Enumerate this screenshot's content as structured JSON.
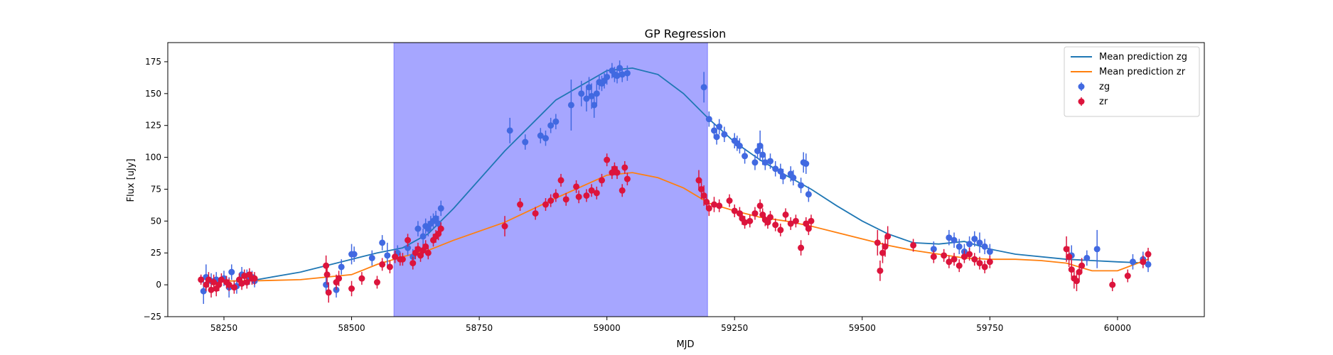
{
  "chart_data": {
    "type": "scatter",
    "title": "GP Regression",
    "xlabel": "MJD",
    "ylabel": "Flux [uJy]",
    "xlim": [
      58140,
      60170
    ],
    "ylim": [
      -25,
      190
    ],
    "xticks": [
      58250,
      58500,
      58750,
      59000,
      59250,
      59500,
      59750,
      60000
    ],
    "yticks": [
      -25,
      0,
      25,
      50,
      75,
      100,
      125,
      150,
      175
    ],
    "grid": false,
    "legend_position": "top-right",
    "shaded_region": {
      "x": [
        58583,
        59197
      ],
      "color": "#a6a6ff"
    },
    "series": [
      {
        "name": "Mean prediction zg",
        "kind": "line",
        "color": "#1f77b4",
        "x": [
          58215,
          58300,
          58400,
          58500,
          58550,
          58600,
          58650,
          58700,
          58800,
          58900,
          59000,
          59050,
          59100,
          59150,
          59200,
          59250,
          59300,
          59350,
          59400,
          59450,
          59500,
          59550,
          59600,
          59650,
          59700,
          59750,
          59800,
          59900,
          60000,
          60060
        ],
        "y": [
          3,
          3,
          10,
          20,
          25,
          29,
          40,
          60,
          105,
          145,
          168,
          170,
          165,
          150,
          130,
          112,
          98,
          86,
          75,
          62,
          50,
          40,
          33,
          32,
          34,
          28,
          24,
          20,
          18,
          17
        ]
      },
      {
        "name": "Mean prediction zr",
        "kind": "line",
        "color": "#ff7f0e",
        "x": [
          58215,
          58300,
          58400,
          58500,
          58550,
          58600,
          58650,
          58700,
          58800,
          58900,
          59000,
          59050,
          59100,
          59150,
          59200,
          59250,
          59300,
          59350,
          59400,
          59450,
          59500,
          59550,
          59600,
          59650,
          59700,
          59750,
          59800,
          59850,
          59900,
          59950,
          60000,
          60060
        ],
        "y": [
          3,
          3,
          4,
          8,
          16,
          22,
          27,
          35,
          49,
          68,
          86,
          88,
          84,
          76,
          64,
          58,
          53,
          50,
          46,
          41,
          36,
          31,
          27,
          24,
          21,
          20,
          20,
          19,
          17,
          11,
          11,
          20
        ]
      },
      {
        "name": "zg",
        "kind": "errorbar",
        "color": "#4169e1",
        "x": [
          58210,
          58215,
          58225,
          58235,
          58250,
          58260,
          58265,
          58275,
          58285,
          58295,
          58300,
          58305,
          58310,
          58450,
          58470,
          58480,
          58500,
          58505,
          58540,
          58560,
          58570,
          58590,
          58610,
          58620,
          58630,
          58640,
          58645,
          58650,
          58655,
          58660,
          58665,
          58670,
          58675,
          58810,
          58840,
          58870,
          58880,
          58890,
          58900,
          58930,
          58950,
          58960,
          58965,
          58970,
          58975,
          58980,
          58985,
          58990,
          58995,
          59000,
          59010,
          59015,
          59020,
          59025,
          59030,
          59040,
          59190,
          59200,
          59210,
          59215,
          59220,
          59230,
          59250,
          59255,
          59260,
          59270,
          59290,
          59295,
          59300,
          59305,
          59310,
          59320,
          59330,
          59340,
          59345,
          59360,
          59365,
          59380,
          59385,
          59390,
          59395,
          59640,
          59670,
          59680,
          59690,
          59700,
          59710,
          59720,
          59730,
          59740,
          59750,
          59910,
          59940,
          59960,
          60030,
          60050,
          60060
        ],
        "y": [
          -5,
          6,
          3,
          4,
          5,
          -2,
          10,
          -1,
          8,
          7,
          5,
          6,
          3,
          0,
          -4,
          14,
          24,
          24,
          21,
          33,
          23,
          25,
          29,
          22,
          44,
          38,
          46,
          44,
          48,
          50,
          52,
          48,
          60,
          121,
          112,
          117,
          115,
          125,
          128,
          141,
          150,
          146,
          155,
          148,
          141,
          150,
          159,
          158,
          160,
          163,
          168,
          165,
          164,
          170,
          165,
          166,
          155,
          130,
          121,
          116,
          124,
          118,
          113,
          111,
          109,
          101,
          96,
          105,
          109,
          102,
          96,
          97,
          91,
          89,
          85,
          87,
          84,
          78,
          96,
          95,
          71,
          28,
          37,
          35,
          30,
          26,
          32,
          36,
          33,
          30,
          26,
          23,
          21,
          28,
          18,
          20,
          16
        ],
        "yerr": [
          10,
          10,
          6,
          6,
          6,
          8,
          6,
          6,
          6,
          5,
          5,
          5,
          5,
          6,
          6,
          6,
          8,
          6,
          6,
          6,
          10,
          6,
          6,
          6,
          6,
          6,
          6,
          6,
          6,
          6,
          6,
          6,
          6,
          10,
          6,
          6,
          6,
          6,
          6,
          20,
          10,
          10,
          8,
          10,
          10,
          8,
          6,
          6,
          6,
          6,
          6,
          6,
          6,
          6,
          6,
          6,
          12,
          6,
          6,
          6,
          6,
          6,
          6,
          6,
          6,
          6,
          6,
          6,
          12,
          8,
          6,
          6,
          6,
          6,
          6,
          6,
          6,
          6,
          8,
          8,
          6,
          6,
          6,
          6,
          6,
          6,
          6,
          6,
          8,
          6,
          6,
          8,
          6,
          15,
          6,
          6,
          6
        ]
      },
      {
        "name": "zr",
        "kind": "errorbar",
        "color": "#dc143c",
        "x": [
          58205,
          58215,
          58220,
          58225,
          58230,
          58235,
          58240,
          58245,
          58255,
          58260,
          58270,
          58280,
          58285,
          58290,
          58295,
          58300,
          58305,
          58310,
          58450,
          58452,
          58455,
          58470,
          58475,
          58500,
          58520,
          58550,
          58560,
          58575,
          58585,
          58595,
          58600,
          58610,
          58620,
          58625,
          58630,
          58635,
          58640,
          58645,
          58650,
          58660,
          58665,
          58670,
          58675,
          58800,
          58830,
          58860,
          58880,
          58890,
          58900,
          58910,
          58920,
          58940,
          58945,
          58960,
          58970,
          58980,
          58990,
          59000,
          59010,
          59015,
          59020,
          59030,
          59035,
          59040,
          59180,
          59185,
          59190,
          59195,
          59200,
          59210,
          59220,
          59240,
          59250,
          59260,
          59265,
          59270,
          59280,
          59290,
          59300,
          59305,
          59310,
          59315,
          59320,
          59330,
          59340,
          59350,
          59360,
          59370,
          59380,
          59390,
          59395,
          59400,
          59530,
          59535,
          59540,
          59545,
          59550,
          59600,
          59640,
          59660,
          59670,
          59680,
          59690,
          59700,
          59710,
          59720,
          59730,
          59740,
          59750,
          59900,
          59905,
          59910,
          59915,
          59920,
          59925,
          59930,
          59990,
          60020,
          60050,
          60060
        ],
        "y": [
          4,
          0,
          4,
          -4,
          2,
          -3,
          0,
          4,
          2,
          0,
          -2,
          4,
          1,
          7,
          2,
          8,
          5,
          5,
          15,
          8,
          -6,
          2,
          5,
          -3,
          5,
          2,
          16,
          14,
          22,
          20,
          20,
          35,
          17,
          25,
          28,
          23,
          27,
          30,
          25,
          35,
          38,
          40,
          44,
          46,
          63,
          56,
          63,
          66,
          70,
          82,
          67,
          77,
          69,
          70,
          74,
          72,
          82,
          98,
          88,
          91,
          88,
          74,
          92,
          83,
          82,
          75,
          70,
          65,
          60,
          63,
          62,
          66,
          58,
          56,
          52,
          49,
          50,
          56,
          62,
          55,
          51,
          49,
          53,
          47,
          43,
          55,
          48,
          50,
          29,
          48,
          44,
          50,
          33,
          11,
          25,
          30,
          38,
          31,
          22,
          23,
          18,
          20,
          15,
          22,
          24,
          20,
          17,
          14,
          18,
          28,
          22,
          12,
          5,
          3,
          10,
          15,
          0,
          7,
          18,
          24
        ],
        "yerr": [
          4,
          5,
          6,
          6,
          6,
          6,
          5,
          5,
          5,
          5,
          5,
          5,
          5,
          5,
          5,
          5,
          5,
          5,
          8,
          8,
          8,
          6,
          6,
          6,
          5,
          5,
          5,
          5,
          5,
          5,
          5,
          5,
          5,
          5,
          5,
          5,
          5,
          5,
          5,
          5,
          5,
          5,
          5,
          8,
          5,
          5,
          5,
          5,
          5,
          5,
          5,
          5,
          5,
          5,
          5,
          5,
          5,
          5,
          5,
          5,
          5,
          5,
          5,
          5,
          8,
          8,
          8,
          6,
          6,
          6,
          5,
          5,
          5,
          5,
          5,
          5,
          5,
          5,
          5,
          5,
          5,
          5,
          5,
          5,
          5,
          5,
          5,
          5,
          6,
          5,
          5,
          5,
          10,
          8,
          8,
          8,
          8,
          5,
          5,
          5,
          5,
          5,
          5,
          5,
          5,
          5,
          5,
          5,
          5,
          10,
          8,
          8,
          8,
          8,
          6,
          6,
          5,
          5,
          5,
          5
        ]
      }
    ]
  }
}
